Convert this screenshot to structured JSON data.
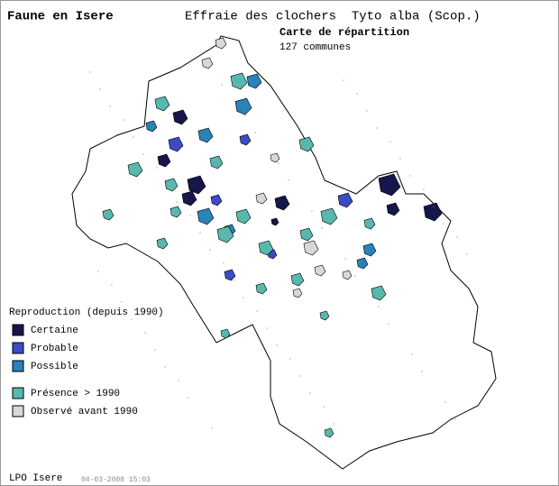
{
  "header": {
    "site": "Faune en Isere",
    "species": "Effraie des clochers  Tyto alba (Scop.)",
    "map_title": "Carte de répartition",
    "count": "127 communes"
  },
  "legend": {
    "title": "Reproduction (depuis 1990)",
    "items": [
      {
        "label": "Certaine",
        "color": "#16164a"
      },
      {
        "label": "Probable",
        "color": "#3a4cc4"
      },
      {
        "label": "Possible",
        "color": "#2a82b8"
      },
      {
        "label": "Présence > 1990",
        "color": "#58b8ae"
      },
      {
        "label": "Observé avant 1990",
        "color": "#d8d8d8"
      }
    ]
  },
  "footer": {
    "source": "LPO Isere",
    "date": "04-03-2008 15:03"
  }
}
